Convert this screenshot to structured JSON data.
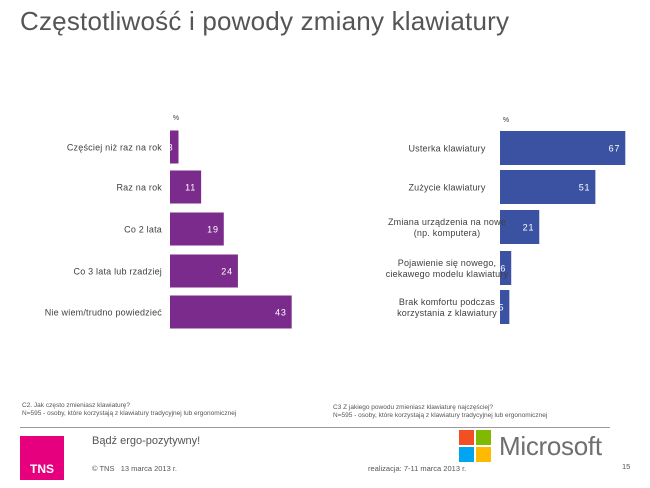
{
  "header": {
    "title": "Częstotliwość i powody zmiany klawiatury"
  },
  "chart_data": [
    {
      "type": "bar",
      "orientation": "horizontal",
      "unit_label": "%",
      "categories": [
        "Częściej niż raz na rok",
        "Raz na rok",
        "Co 2 lata",
        "Co 3 lata lub rzadziej",
        "Nie wiem/trudno powiedzieć"
      ],
      "values": [
        3,
        11,
        19,
        24,
        43
      ],
      "xlim": [
        0,
        100
      ],
      "bar_color": "#7a2b8b",
      "grid": false,
      "legend": "none"
    },
    {
      "type": "bar",
      "orientation": "horizontal",
      "unit_label": "%",
      "categories": [
        [
          "Usterka klawiatury"
        ],
        [
          "Zużycie klawiatury"
        ],
        [
          "Zmiana urządzenia na nowe",
          "(np. komputera)"
        ],
        [
          "Pojawienie się nowego,",
          "ciekawego modelu klawiatury"
        ],
        [
          "Brak komfortu podczas",
          "korzystania z klawiatury"
        ]
      ],
      "values": [
        67,
        51,
        21,
        6,
        5
      ],
      "xlim": [
        0,
        100
      ],
      "bar_color": "#3b52a3",
      "grid": false,
      "legend": "none"
    }
  ],
  "notes": {
    "left": [
      "C2. Jak często zmieniasz klawiaturę?",
      "N=595 - osoby, które korzystają z klawiatury tradycyjnej lub ergonomicznej"
    ],
    "right": [
      "C3 Z jakiego powodu zmieniasz klawiaturę najczęściej?",
      "N=595 - osoby, które korzystają z klawiatury tradycyjnej lub ergonomicznej"
    ]
  },
  "footer": {
    "tns_logo": "TNS",
    "slogan": "Bądź ergo-pozytywny!",
    "copyright": "© TNS   13 marca 2013 r.",
    "realization": "realizacja: 7-11 marca 2013 r.",
    "page_number": "15",
    "microsoft_logo": "Microsoft",
    "microsoft_colors": [
      "#f25022",
      "#7fba00",
      "#00a4ef",
      "#ffb900"
    ]
  }
}
